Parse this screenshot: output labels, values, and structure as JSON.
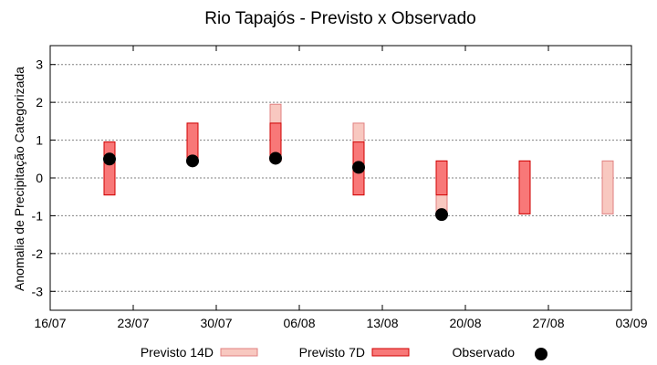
{
  "chart_data": {
    "type": "bar",
    "title": "Rio Tapajós - Previsto x Observado",
    "xlabel": "",
    "ylabel": "Anomalia de Precipitação Categorizada",
    "xlim": [
      "2024-07-16",
      "2024-09-03"
    ],
    "ylim": [
      -3.5,
      3.5
    ],
    "yticks": [
      -3,
      -2,
      -1,
      0,
      1,
      2,
      3
    ],
    "xticks": [
      {
        "date": "2024-07-16",
        "label": "16/07"
      },
      {
        "date": "2024-07-23",
        "label": "23/07"
      },
      {
        "date": "2024-07-30",
        "label": "30/07"
      },
      {
        "date": "2024-08-06",
        "label": "06/08"
      },
      {
        "date": "2024-08-13",
        "label": "13/08"
      },
      {
        "date": "2024-08-20",
        "label": "20/08"
      },
      {
        "date": "2024-08-27",
        "label": "27/08"
      },
      {
        "date": "2024-09-03",
        "label": "03/09"
      }
    ],
    "grid": true,
    "legend_position": "bottom",
    "series": [
      {
        "name": "Previsto 14D",
        "kind": "range",
        "color": "#f8c8c0",
        "edge_color": "#e08080",
        "values": [
          {
            "date": "2024-07-21",
            "low": -0.45,
            "high": 0.95
          },
          {
            "date": "2024-07-28",
            "low": 0.45,
            "high": 1.45
          },
          {
            "date": "2024-08-04",
            "low": 0.45,
            "high": 1.95
          },
          {
            "date": "2024-08-11",
            "low": -0.45,
            "high": 1.45
          },
          {
            "date": "2024-08-18",
            "low": -0.95,
            "high": 0.45
          },
          {
            "date": "2024-08-25",
            "low": -0.95,
            "high": 0.45
          },
          {
            "date": "2024-09-01",
            "low": -0.95,
            "high": 0.45
          }
        ]
      },
      {
        "name": "Previsto 7D",
        "kind": "range",
        "color": "#f87878",
        "edge_color": "#d00000",
        "values": [
          {
            "date": "2024-07-21",
            "low": -0.45,
            "high": 0.95
          },
          {
            "date": "2024-07-28",
            "low": 0.45,
            "high": 1.45
          },
          {
            "date": "2024-08-04",
            "low": 0.45,
            "high": 1.45
          },
          {
            "date": "2024-08-11",
            "low": -0.45,
            "high": 0.95
          },
          {
            "date": "2024-08-18",
            "low": -0.45,
            "high": 0.45
          },
          {
            "date": "2024-08-25",
            "low": -0.95,
            "high": 0.45
          }
        ]
      },
      {
        "name": "Observado",
        "kind": "point",
        "color": "#000000",
        "values": [
          {
            "date": "2024-07-21",
            "y": 0.5
          },
          {
            "date": "2024-07-28",
            "y": 0.45
          },
          {
            "date": "2024-08-04",
            "y": 0.52
          },
          {
            "date": "2024-08-11",
            "y": 0.28
          },
          {
            "date": "2024-08-18",
            "y": -0.97
          }
        ]
      }
    ]
  }
}
